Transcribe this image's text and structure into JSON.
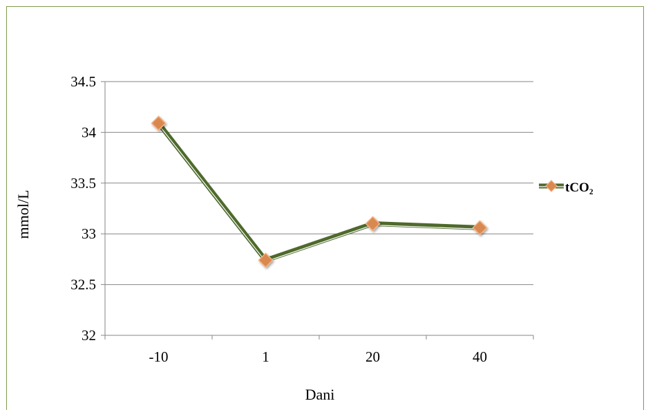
{
  "chart_data": {
    "type": "line",
    "title": "",
    "xlabel": "Dani",
    "ylabel": "mmol/L",
    "categories": [
      "-10",
      "1",
      "20",
      "40"
    ],
    "series": [
      {
        "name": "tCO₂",
        "values": [
          34.09,
          32.74,
          33.1,
          33.06
        ]
      }
    ],
    "ylim": [
      32,
      34.5
    ],
    "yticks": [
      "32",
      "32.5",
      "33",
      "33.5",
      "34",
      "34.5"
    ],
    "grid": "horizontal",
    "legend_position": "right",
    "colors": {
      "line": "#4e6a2c",
      "marker_fill": "#d9894f",
      "marker_stroke": "#f4b183",
      "grid": "#868686",
      "frame": "#7f9a4b"
    }
  }
}
